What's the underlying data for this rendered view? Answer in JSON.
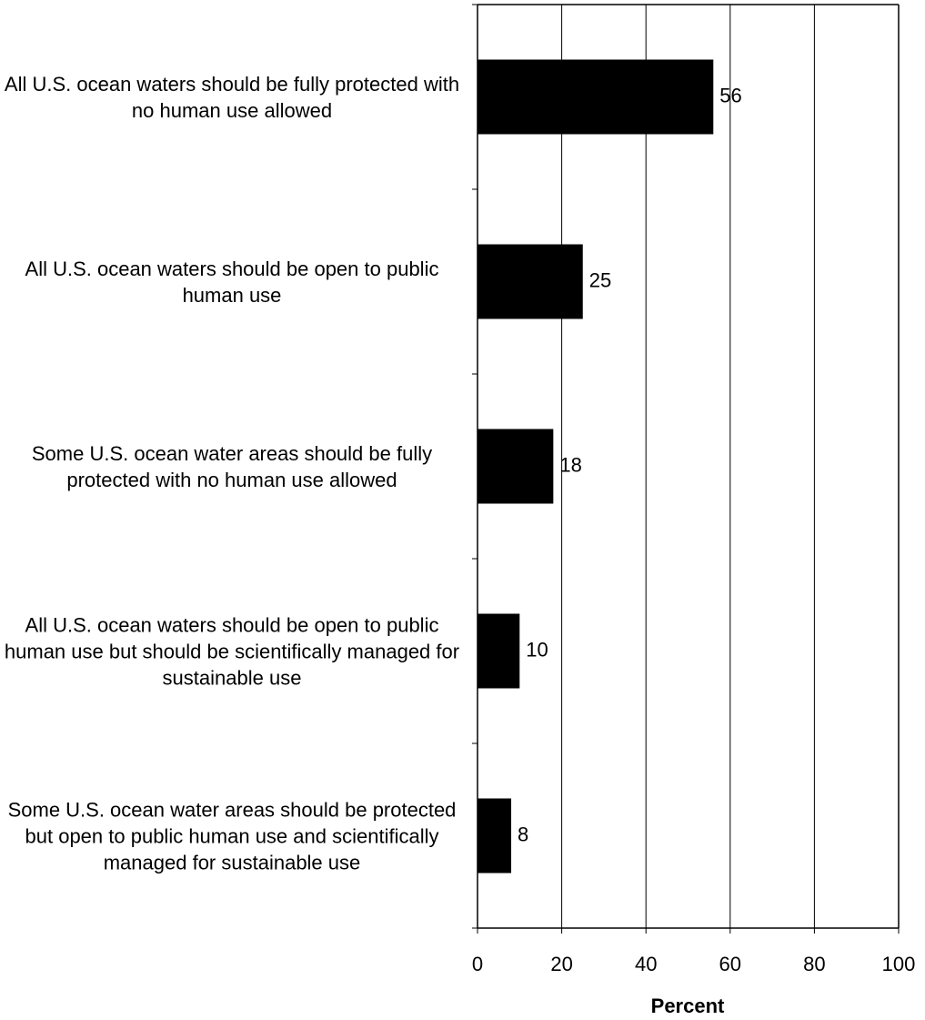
{
  "chart_data": {
    "type": "barh",
    "categories": [
      "All U.S. ocean waters should be fully protected with no human use allowed",
      "All U.S. ocean waters should be open to public human use",
      "Some U.S. ocean water areas should be fully protected with no human use allowed",
      "All U.S. ocean waters should be open to public human use but should be scientifically managed for sustainable use",
      "Some U.S. ocean water areas should be protected but open to public human use and scientifically managed for sustainable use"
    ],
    "values": [
      56,
      25,
      18,
      10,
      8
    ],
    "color": "#000000",
    "xlabel": "Percent",
    "xlim": [
      0,
      100
    ],
    "xticks": [
      0,
      20,
      40,
      60,
      80,
      100
    ],
    "grid": true
  }
}
